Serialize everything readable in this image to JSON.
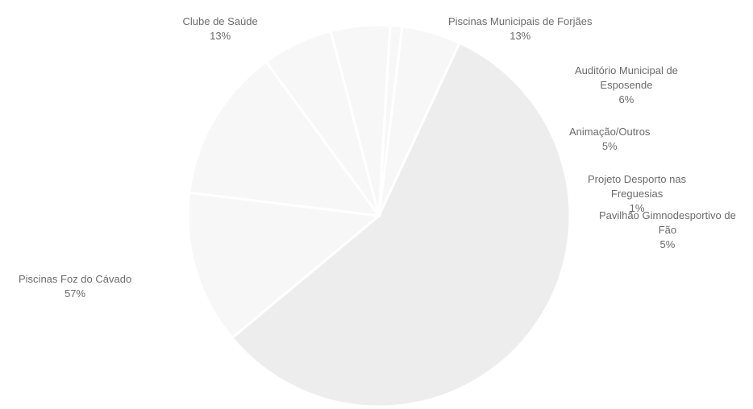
{
  "chart_data": {
    "type": "pie",
    "start_angle_deg": 83,
    "direction": "clockwise",
    "colors": {
      "fill_light": "#f7f7f7",
      "fill_main": "#ededed",
      "stroke": "#ffffff",
      "label_text": "#6b6b6b"
    },
    "slices": [
      {
        "name": "Pavilhão Gimnodesportivo de Fão",
        "label_lines": [
          "Pavilhão Gimnodesportivo de",
          "Fão"
        ],
        "value": 5,
        "percent_label": "5%"
      },
      {
        "name": "Piscinas Foz do Cávado",
        "label_lines": [
          "Piscinas Foz do Cávado"
        ],
        "value": 57,
        "percent_label": "57%"
      },
      {
        "name": "Clube de Saúde",
        "label_lines": [
          "Clube de Saúde"
        ],
        "value": 13,
        "percent_label": "13%"
      },
      {
        "name": "Piscinas Municipais de Forjães",
        "label_lines": [
          "Piscinas Municipais de Forjães"
        ],
        "value": 13,
        "percent_label": "13%"
      },
      {
        "name": "Auditório Municipal de Esposende",
        "label_lines": [
          "Auditório Municipal de",
          "Esposende"
        ],
        "value": 6,
        "percent_label": "6%"
      },
      {
        "name": "Animação/Outros",
        "label_lines": [
          "Animação/Outros"
        ],
        "value": 5,
        "percent_label": "5%"
      },
      {
        "name": "Projeto Desporto nas Freguesias",
        "label_lines": [
          "Projeto Desporto nas",
          "Freguesias"
        ],
        "value": 1,
        "percent_label": "1%"
      }
    ]
  }
}
